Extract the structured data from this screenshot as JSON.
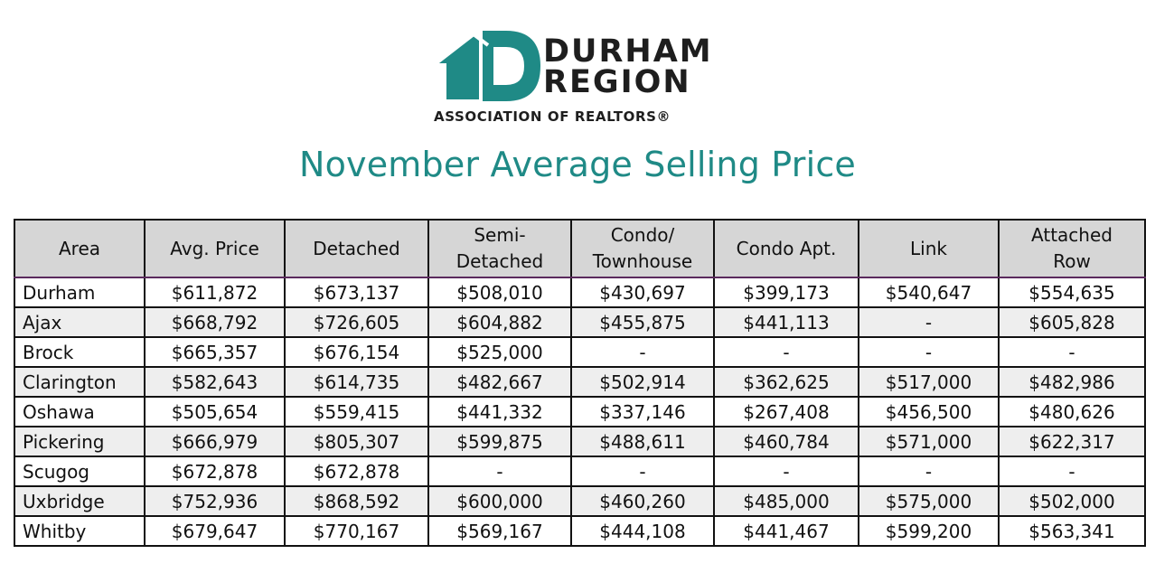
{
  "logo": {
    "line1": "DURHAM",
    "line2": "REGION",
    "tagline": "ASSOCIATION OF REALTORS®",
    "color": "#1f8a86"
  },
  "title": "November Average Selling Price",
  "table": {
    "headers": [
      "Area",
      "Avg. Price",
      "Detached",
      "Semi-\nDetached",
      "Condo/\nTownhouse",
      "Condo Apt.",
      "Link",
      "Attached\nRow"
    ],
    "rows": [
      [
        "Durham",
        "$611,872",
        "$673,137",
        "$508,010",
        "$430,697",
        "$399,173",
        "$540,647",
        "$554,635"
      ],
      [
        "Ajax",
        "$668,792",
        "$726,605",
        "$604,882",
        "$455,875",
        "$441,113",
        "-",
        "$605,828"
      ],
      [
        "Brock",
        "$665,357",
        "$676,154",
        "$525,000",
        "-",
        "-",
        "-",
        "-"
      ],
      [
        "Clarington",
        "$582,643",
        "$614,735",
        "$482,667",
        "$502,914",
        "$362,625",
        "$517,000",
        "$482,986"
      ],
      [
        "Oshawa",
        "$505,654",
        "$559,415",
        "$441,332",
        "$337,146",
        "$267,408",
        "$456,500",
        "$480,626"
      ],
      [
        "Pickering",
        "$666,979",
        "$805,307",
        "$599,875",
        "$488,611",
        "$460,784",
        "$571,000",
        "$622,317"
      ],
      [
        "Scugog",
        "$672,878",
        "$672,878",
        "-",
        "-",
        "-",
        "-",
        "-"
      ],
      [
        "Uxbridge",
        "$752,936",
        "$868,592",
        "$600,000",
        "$460,260",
        "$485,000",
        "$575,000",
        "$502,000"
      ],
      [
        "Whitby",
        "$679,647",
        "$770,167",
        "$569,167",
        "$444,108",
        "$441,467",
        "$599,200",
        "$563,341"
      ]
    ]
  }
}
